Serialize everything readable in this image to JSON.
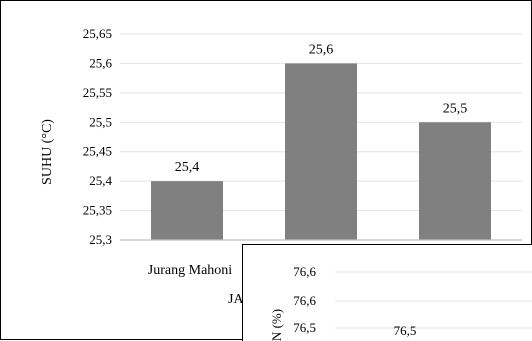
{
  "chart_data": [
    {
      "type": "bar",
      "ylabel": "SUHU (°C)",
      "xlabel": "JA",
      "categories": [
        "Jurang Mahoni",
        "",
        ""
      ],
      "values": [
        25.4,
        25.6,
        25.5
      ],
      "value_labels": [
        "25,4",
        "25,6",
        "25,5"
      ],
      "ylim": [
        25.3,
        25.65
      ],
      "yticks": [
        "25,3",
        "25,35",
        "25,4",
        "25,45",
        "25,5",
        "25,55",
        "25,6",
        "25,65"
      ],
      "grid": true,
      "bar_color": "#808080"
    },
    {
      "type": "bar",
      "ylabel": "N (%)",
      "yticks_visible": [
        "76,6",
        "76,6",
        "76,5"
      ],
      "value_labels": [
        "76,5"
      ],
      "values": [
        76.5
      ],
      "grid": true,
      "bar_color": "#808080"
    }
  ]
}
